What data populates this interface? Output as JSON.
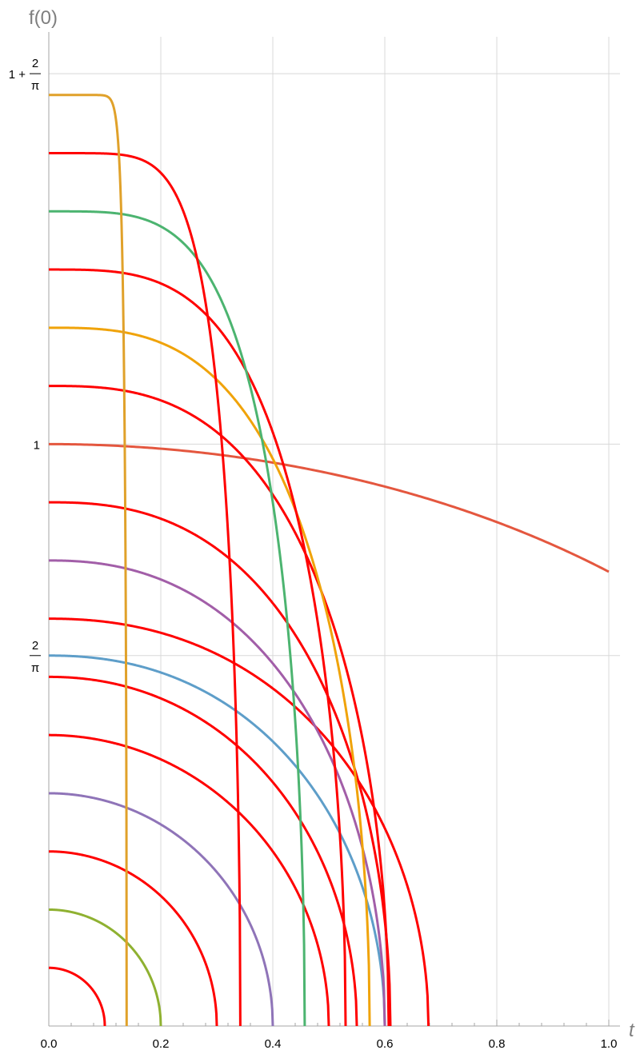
{
  "chart_data": {
    "type": "line",
    "xlabel": "t",
    "ylabel": "f(0)",
    "xlim": [
      0,
      1.0
    ],
    "ylim": [
      0,
      1.7
    ],
    "grid": true,
    "x_ticks": [
      {
        "value": 0.0,
        "label": "0.0"
      },
      {
        "value": 0.2,
        "label": "0.2"
      },
      {
        "value": 0.4,
        "label": "0.4"
      },
      {
        "value": 0.6,
        "label": "0.6"
      },
      {
        "value": 0.8,
        "label": "0.8"
      },
      {
        "value": 1.0,
        "label": "1.0"
      }
    ],
    "y_ticks": [
      {
        "value": 0.6366,
        "prefix": "",
        "numerator": "2",
        "denominator": "π"
      },
      {
        "value": 1.0,
        "prefix": "1",
        "numerator": "",
        "denominator": ""
      },
      {
        "value": 1.6366,
        "prefix": "1 +",
        "numerator": "2",
        "denominator": "π"
      }
    ],
    "series": [
      {
        "f0": 0.1,
        "t_end": 0.1,
        "exponent": 2.0,
        "color": "#ff0000",
        "width": 3
      },
      {
        "f0": 0.2,
        "t_end": 0.2,
        "exponent": 2.0,
        "color": "#8fb131",
        "width": 3
      },
      {
        "f0": 0.3,
        "t_end": 0.3,
        "exponent": 2.0,
        "color": "#ff0000",
        "width": 3
      },
      {
        "f0": 0.4,
        "t_end": 0.4,
        "exponent": 2.0,
        "color": "#8f74b8",
        "width": 3
      },
      {
        "f0": 0.5,
        "t_end": 0.5,
        "exponent": 2.0,
        "color": "#ff0000",
        "width": 3
      },
      {
        "f0": 0.6,
        "t_end": 0.55,
        "exponent": 2.1,
        "color": "#ff0000",
        "width": 3
      },
      {
        "f0": 0.6366,
        "t_end": 0.6,
        "exponent": 2.2,
        "color": "#5e9ec9",
        "width": 3
      },
      {
        "f0": 0.7,
        "t_end": 0.678,
        "exponent": 2.2,
        "color": "#ff0000",
        "width": 3
      },
      {
        "f0": 0.8,
        "t_end": 0.6,
        "exponent": 2.3,
        "color": "#a25ea8",
        "width": 3
      },
      {
        "f0": 0.9,
        "t_end": 0.61,
        "exponent": 2.5,
        "color": "#ff0000",
        "width": 3
      },
      {
        "f0": 1.0,
        "t_end": 1.6,
        "exponent": 2.0,
        "color": "#e4573f",
        "width": 3
      },
      {
        "f0": 1.1,
        "t_end": 0.607,
        "exponent": 2.8,
        "color": "#ff0000",
        "width": 3
      },
      {
        "f0": 1.2,
        "t_end": 0.573,
        "exponent": 3.0,
        "color": "#f0a30a",
        "width": 3
      },
      {
        "f0": 1.3,
        "t_end": 0.53,
        "exponent": 3.4,
        "color": "#ff0000",
        "width": 3
      },
      {
        "f0": 1.4,
        "t_end": 0.457,
        "exponent": 4.0,
        "color": "#4cb470",
        "width": 3
      },
      {
        "f0": 1.5,
        "t_end": 0.342,
        "exponent": 5.8,
        "color": "#ff0000",
        "width": 3
      },
      {
        "f0": 1.6,
        "t_end": 0.139,
        "exponent": 20.0,
        "color": "#e0a12a",
        "width": 3
      }
    ]
  }
}
